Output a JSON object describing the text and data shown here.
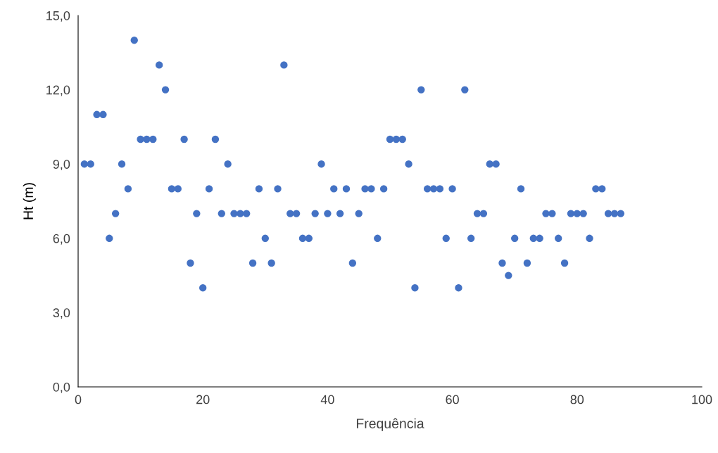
{
  "chart_data": {
    "type": "scatter",
    "xlabel": "Frequência",
    "ylabel": "Ht (m)",
    "x": [
      1,
      2,
      3,
      4,
      5,
      6,
      7,
      8,
      9,
      10,
      11,
      12,
      13,
      14,
      15,
      16,
      17,
      18,
      19,
      20,
      21,
      22,
      23,
      24,
      25,
      26,
      27,
      28,
      29,
      30,
      31,
      32,
      33,
      34,
      35,
      36,
      37,
      38,
      39,
      40,
      41,
      42,
      43,
      44,
      45,
      46,
      47,
      48,
      49,
      50,
      51,
      52,
      53,
      54,
      55,
      56,
      57,
      58,
      59,
      60,
      61,
      62,
      63,
      64,
      65,
      66,
      67,
      68,
      69,
      70,
      71,
      72,
      73,
      74,
      75,
      76,
      77,
      78,
      79,
      80,
      81,
      82,
      83,
      84,
      85,
      86,
      87
    ],
    "series": [
      {
        "color": "#4472c4",
        "values": [
          9,
          9,
          11,
          11,
          6,
          7,
          9,
          8,
          14,
          10,
          10,
          10,
          13,
          12,
          8,
          8,
          10,
          5,
          7,
          4,
          8,
          10,
          7,
          9,
          7,
          7,
          7,
          5,
          8,
          6,
          5,
          8,
          13,
          7,
          7,
          6,
          6,
          7,
          9,
          7,
          8,
          7,
          8,
          5,
          7,
          8,
          8,
          6,
          8,
          10,
          10,
          10,
          9,
          4,
          12,
          8,
          8,
          8,
          6,
          8,
          4,
          12,
          6,
          7,
          7,
          9,
          9,
          5,
          4.5,
          6,
          8,
          5,
          6,
          6,
          7,
          7,
          6,
          5,
          7,
          7,
          7,
          6,
          8,
          8,
          7,
          7,
          7
        ]
      }
    ],
    "xlim": [
      0,
      100
    ],
    "xticks": [
      0,
      20,
      40,
      60,
      80,
      100
    ],
    "ylim": [
      0,
      15
    ],
    "yticks": [
      {
        "value": 0,
        "label": "0,0"
      },
      {
        "value": 3,
        "label": "3,0"
      },
      {
        "value": 6,
        "label": "6,0"
      },
      {
        "value": 9,
        "label": "9,0"
      },
      {
        "value": 12,
        "label": "12,0"
      },
      {
        "value": 15,
        "label": "15,0"
      }
    ],
    "grid": false,
    "marker": "circle"
  }
}
